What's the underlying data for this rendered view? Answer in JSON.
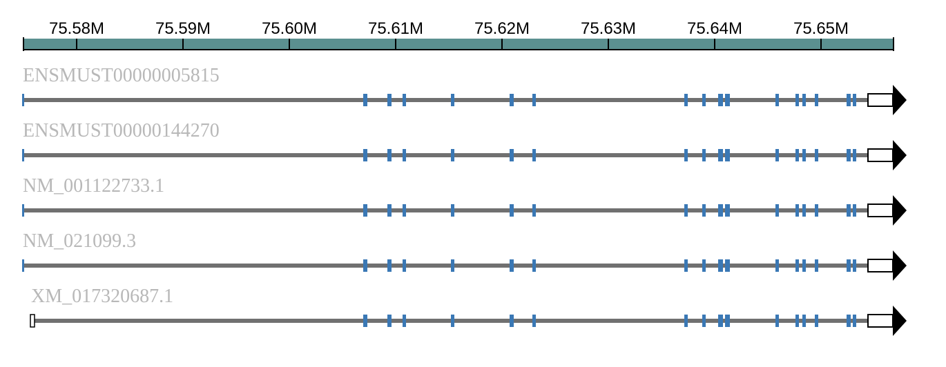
{
  "axis": {
    "ticks": [
      "75.58M",
      "75.59M",
      "75.60M",
      "75.61M",
      "75.62M",
      "75.63M",
      "75.64M",
      "75.65M"
    ],
    "ruler_color": "#5b9090"
  },
  "colors": {
    "exon": "#3a78b5",
    "intron": "#707070",
    "utr": "#ffffff",
    "arrow": "#000000",
    "label": "#b8b8b8"
  },
  "transcripts": [
    {
      "id": "ENSMUST00000005815"
    },
    {
      "id": "ENSMUST00000144270"
    },
    {
      "id": "NM_001122733.1"
    },
    {
      "id": "NM_021099.3"
    },
    {
      "id": "XM_017320687.1"
    }
  ],
  "strand": "+"
}
